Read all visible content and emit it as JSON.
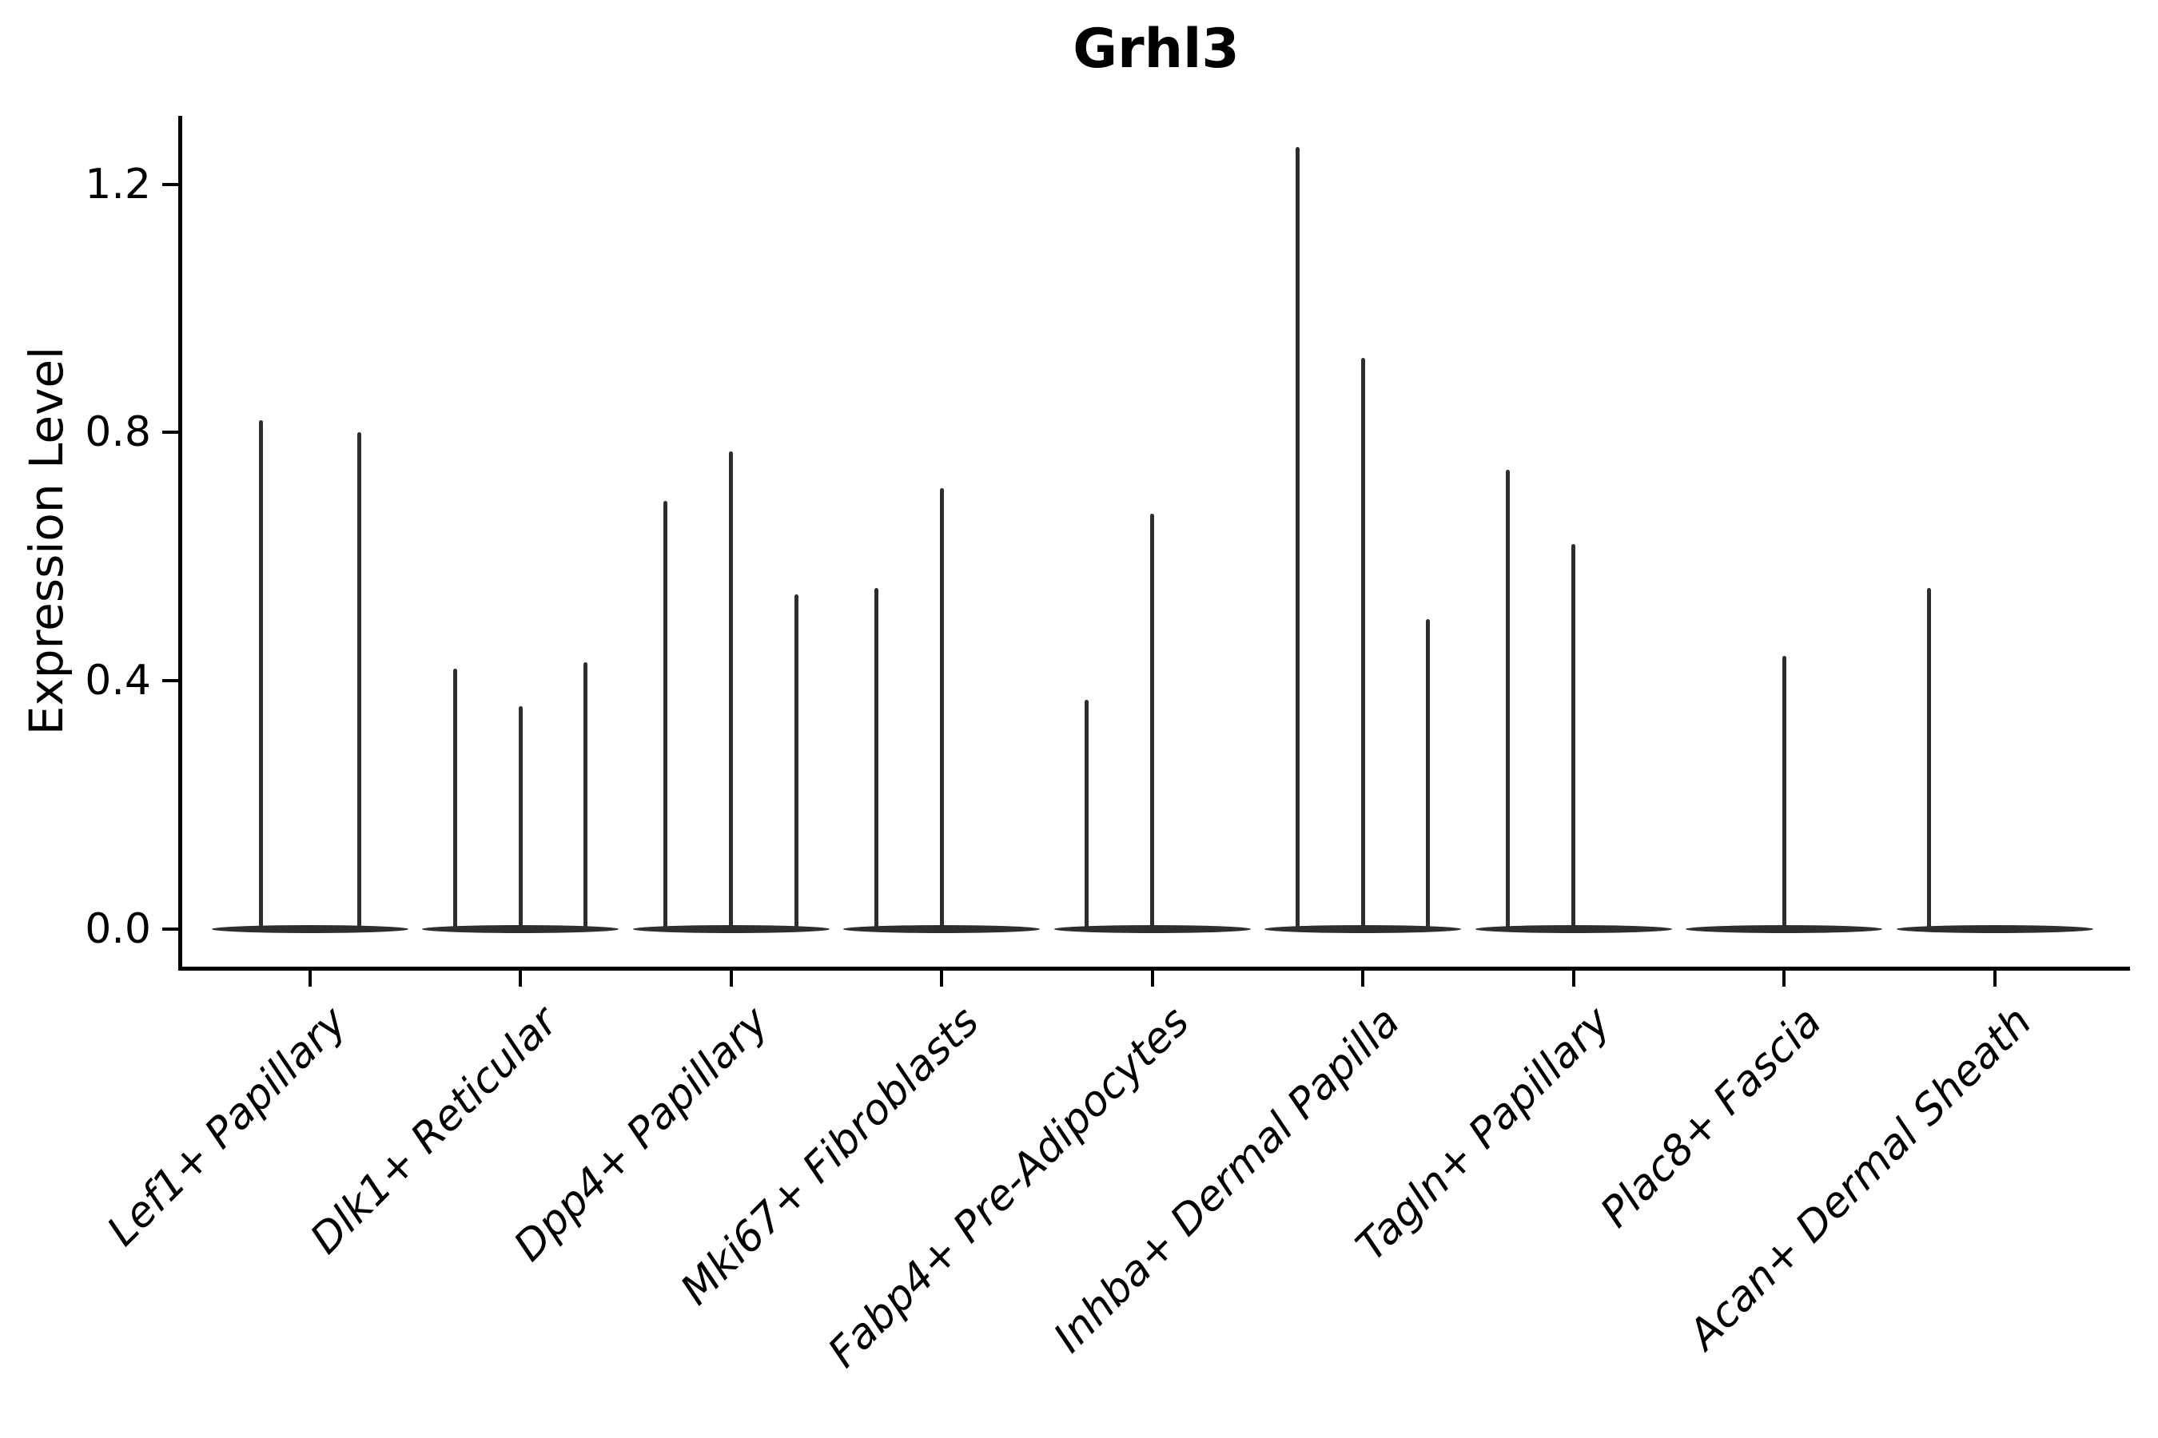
{
  "chart_data": {
    "type": "violin",
    "title": "Grhl3",
    "xlabel": "",
    "ylabel": "Expression Level",
    "yticks": [
      0.0,
      0.4,
      0.8,
      1.2
    ],
    "ytick_labels": [
      "0.0",
      "0.4",
      "0.8",
      "1.2"
    ],
    "ylim": [
      -0.06,
      1.31
    ],
    "grid": false,
    "legend": null,
    "ink_color": "#000000",
    "violin_color": "#2e2e2e",
    "categories": [
      "Lef1+ Papillary",
      "Dlk1+ Reticular",
      "Dpp4+ Papillary",
      "Mki67+ Fibroblasts",
      "Fabp4+ Pre-Adipocytes",
      "Inhba+ Dermal Papilla",
      "Tagln+ Papillary",
      "Plac8+ Fascia",
      "Acan+ Dermal Sheath"
    ],
    "violins": [
      {
        "category": "Lef1+ Papillary",
        "spikes": [
          {
            "pos": 0.25,
            "max": 0.82
          },
          {
            "pos": 0.75,
            "max": 0.8
          }
        ]
      },
      {
        "category": "Dlk1+ Reticular",
        "spikes": [
          {
            "pos": 0.1667,
            "max": 0.42
          },
          {
            "pos": 0.5,
            "max": 0.36
          },
          {
            "pos": 0.8333,
            "max": 0.43
          }
        ]
      },
      {
        "category": "Dpp4+ Papillary",
        "spikes": [
          {
            "pos": 0.1667,
            "max": 0.69
          },
          {
            "pos": 0.5,
            "max": 0.77
          },
          {
            "pos": 0.8333,
            "max": 0.54
          }
        ]
      },
      {
        "category": "Mki67+ Fibroblasts",
        "spikes": [
          {
            "pos": 0.1667,
            "max": 0.55
          },
          {
            "pos": 0.5,
            "max": 0.71
          }
        ]
      },
      {
        "category": "Fabp4+ Pre-Adipocytes",
        "spikes": [
          {
            "pos": 0.1667,
            "max": 0.37
          },
          {
            "pos": 0.5,
            "max": 0.67
          }
        ]
      },
      {
        "category": "Inhba+ Dermal Papilla",
        "spikes": [
          {
            "pos": 0.1667,
            "max": 1.26
          },
          {
            "pos": 0.5,
            "max": 0.92
          },
          {
            "pos": 0.8333,
            "max": 0.5
          }
        ]
      },
      {
        "category": "Tagln+ Papillary",
        "spikes": [
          {
            "pos": 0.1667,
            "max": 0.74
          },
          {
            "pos": 0.5,
            "max": 0.62
          }
        ]
      },
      {
        "category": "Plac8+ Fascia",
        "spikes": [
          {
            "pos": 0.5,
            "max": 0.44
          }
        ]
      },
      {
        "category": "Acan+ Dermal Sheath",
        "spikes": [
          {
            "pos": 0.1667,
            "max": 0.55
          }
        ]
      }
    ]
  }
}
